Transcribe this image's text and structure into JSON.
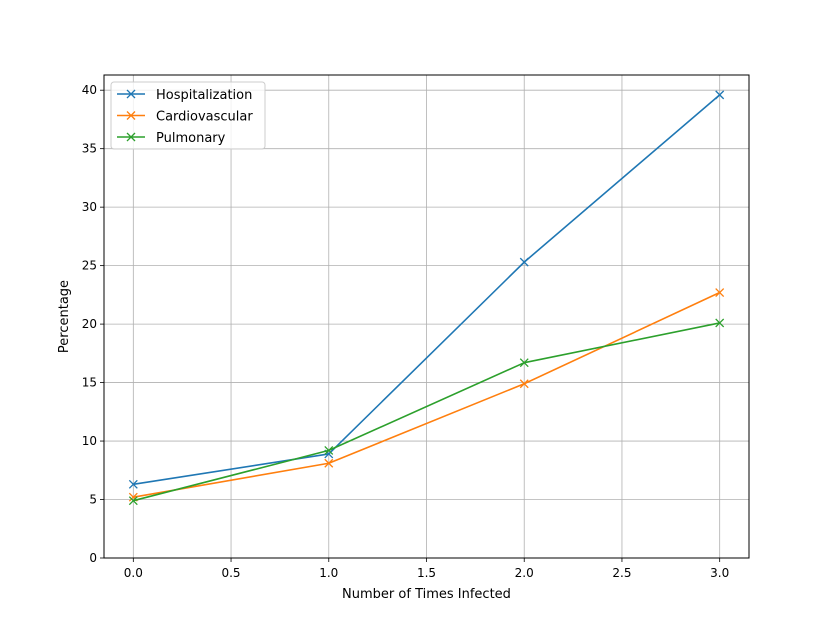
{
  "chart_data": {
    "type": "line",
    "title": "",
    "xlabel": "Number of Times Infected",
    "ylabel": "Percentage",
    "xlim": [
      -0.15,
      3.15
    ],
    "ylim": [
      0,
      41.3
    ],
    "xticks": [
      0.0,
      0.5,
      1.0,
      1.5,
      2.0,
      2.5,
      3.0
    ],
    "xtick_labels": [
      "0.0",
      "0.5",
      "1.0",
      "1.5",
      "2.0",
      "2.5",
      "3.0"
    ],
    "yticks": [
      0,
      5,
      10,
      15,
      20,
      25,
      30,
      35,
      40
    ],
    "ytick_labels": [
      "0",
      "5",
      "10",
      "15",
      "20",
      "25",
      "30",
      "35",
      "40"
    ],
    "grid": true,
    "legend_position": "top-left",
    "marker": "x",
    "x": [
      0,
      1,
      2,
      3
    ],
    "series": [
      {
        "name": "Hospitalization",
        "color": "#1f77b4",
        "values": [
          6.3,
          8.9,
          25.3,
          39.6
        ]
      },
      {
        "name": "Cardiovascular",
        "color": "#ff7f0e",
        "values": [
          5.2,
          8.1,
          14.9,
          22.7
        ]
      },
      {
        "name": "Pulmonary",
        "color": "#2ca02c",
        "values": [
          4.9,
          9.2,
          16.7,
          20.1
        ]
      }
    ]
  }
}
